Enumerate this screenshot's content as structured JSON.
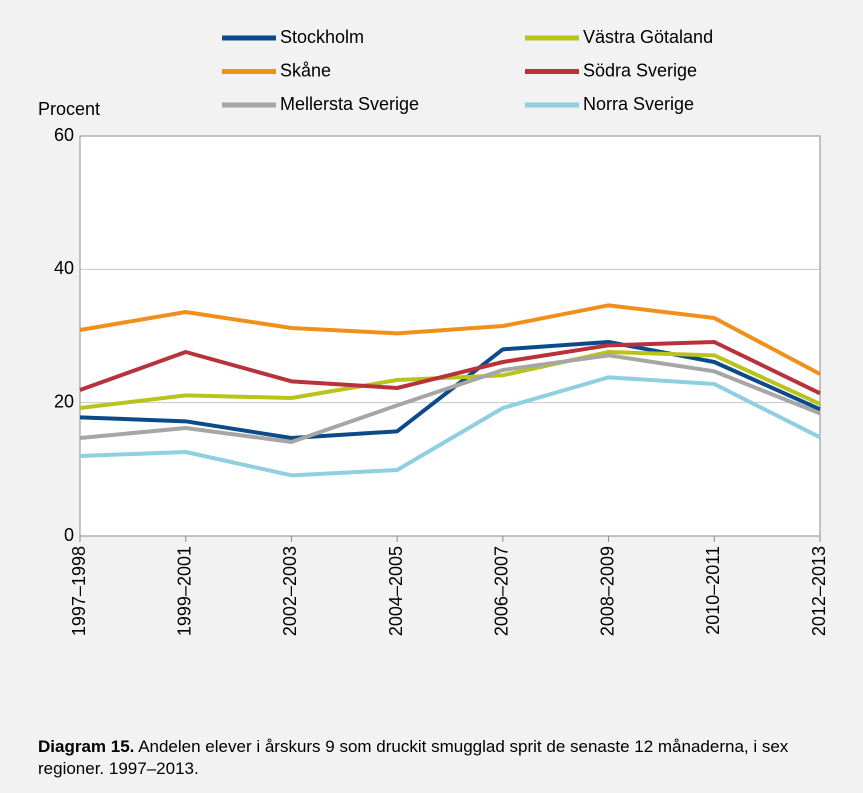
{
  "chart_data": {
    "type": "line",
    "y_label": "Procent",
    "categories": [
      "1997–1998",
      "1999–2001",
      "2002–2003",
      "2004–2005",
      "2006–2007",
      "2008–2009",
      "2010–2011",
      "2012–2013"
    ],
    "series": [
      {
        "name": "Stockholm",
        "color": "#0d4a8a",
        "values": [
          17.8,
          17.2,
          14.7,
          15.7,
          28,
          29.1,
          26.1,
          19
        ]
      },
      {
        "name": "Västra Götaland",
        "color": "#b8c41c",
        "values": [
          19.2,
          21.1,
          20.7,
          23.4,
          24.1,
          27.6,
          27.1,
          19.8
        ]
      },
      {
        "name": "Skåne",
        "color": "#f0901a",
        "values": [
          30.9,
          33.6,
          31.2,
          30.4,
          31.5,
          34.6,
          32.7,
          24.3
        ]
      },
      {
        "name": "Södra Sverige",
        "color": "#b8323a",
        "values": [
          21.9,
          27.6,
          23.2,
          22.2,
          26.1,
          28.6,
          29.1,
          21.4
        ]
      },
      {
        "name": "Mellersta Sverige",
        "color": "#a6a6a6",
        "values": [
          14.7,
          16.2,
          14.1,
          19.6,
          24.9,
          27.1,
          24.7,
          18.4
        ]
      },
      {
        "name": "Norra Sverige",
        "color": "#8ecfe0",
        "values": [
          12,
          12.6,
          9.1,
          9.9,
          19.2,
          23.8,
          22.8,
          14.8
        ]
      }
    ],
    "ylim": [
      0,
      60
    ],
    "yticks": [
      0,
      20,
      40,
      60
    ],
    "grid": true,
    "legend": "top",
    "caption": {
      "label": "Diagram 15.",
      "text": "Andelen elever i årskurs 9 som druckit smugglad sprit de senaste 12 månaderna, i sex regioner. 1997–2013."
    }
  }
}
